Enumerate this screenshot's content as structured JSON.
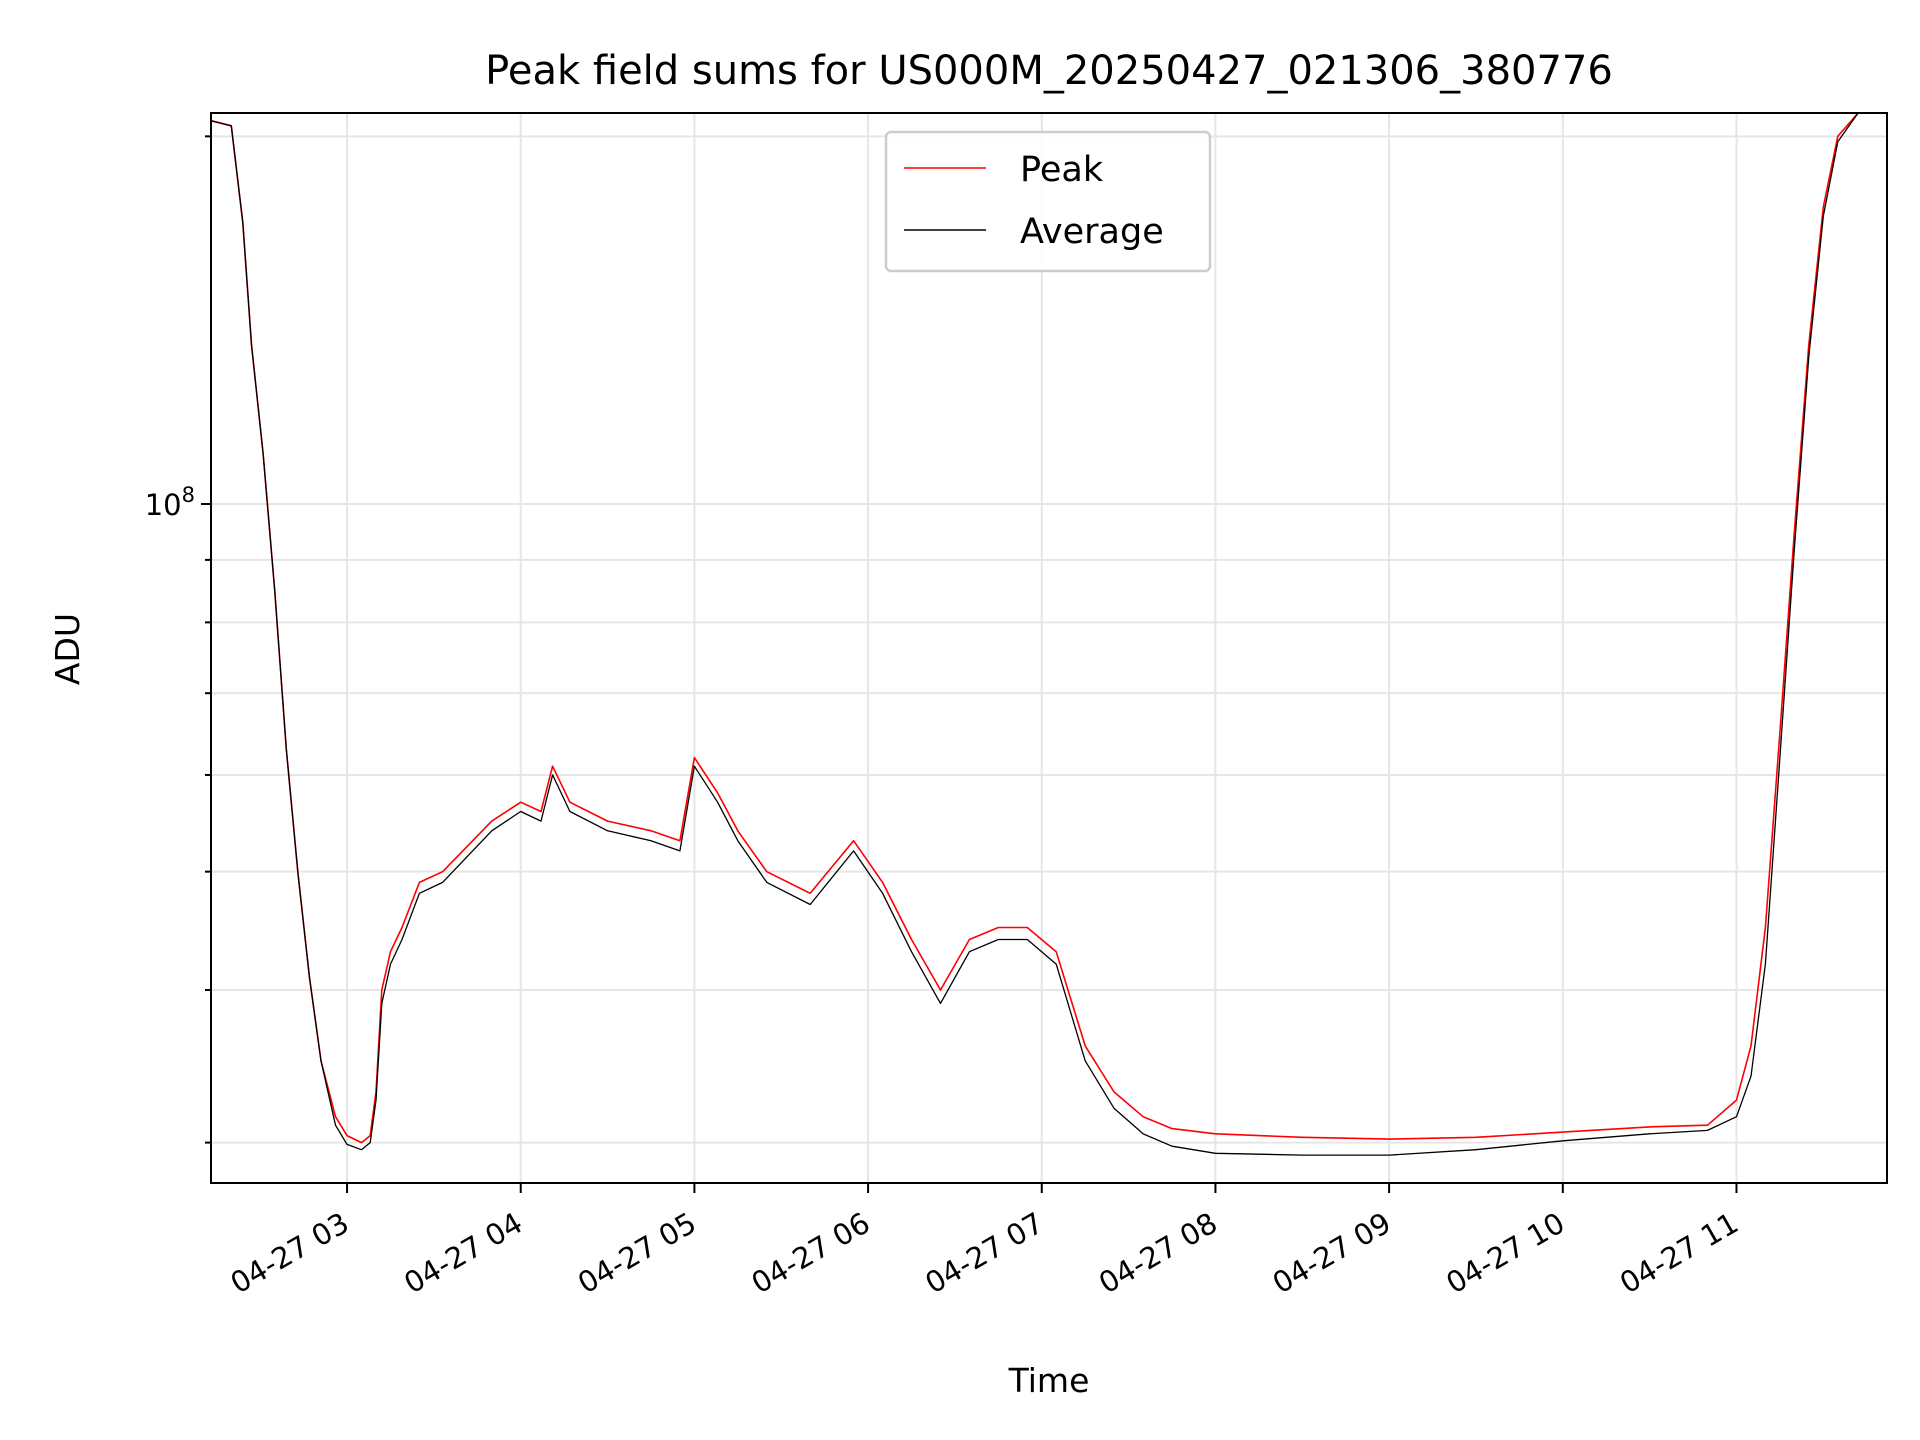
{
  "chart_data": {
    "type": "line",
    "title": "Peak field sums for US000M_20250427_021306_380776",
    "xlabel": "Time",
    "ylabel": "ADU",
    "yscale": "log",
    "grid": true,
    "legend_position": "top-center",
    "xlim": [
      "2025-04-27 02:13",
      "2025-04-27 11:52"
    ],
    "ylim": [
      27800000,
      209000000
    ],
    "x_ticks": [
      {
        "time": "2025-04-27 03:00",
        "label": "04-27 03"
      },
      {
        "time": "2025-04-27 04:00",
        "label": "04-27 04"
      },
      {
        "time": "2025-04-27 05:00",
        "label": "04-27 05"
      },
      {
        "time": "2025-04-27 06:00",
        "label": "04-27 06"
      },
      {
        "time": "2025-04-27 07:00",
        "label": "04-27 07"
      },
      {
        "time": "2025-04-27 08:00",
        "label": "04-27 08"
      },
      {
        "time": "2025-04-27 09:00",
        "label": "04-27 09"
      },
      {
        "time": "2025-04-27 10:00",
        "label": "04-27 10"
      },
      {
        "time": "2025-04-27 11:00",
        "label": "04-27 11"
      }
    ],
    "y_major_ticks": [
      {
        "value": 100000000,
        "label_base": "10",
        "label_exp": "8"
      }
    ],
    "y_minor_ticks": [
      30000000,
      40000000,
      50000000,
      60000000,
      70000000,
      80000000,
      90000000,
      200000000
    ],
    "series": [
      {
        "name": "Peak",
        "color": "#ff0000",
        "points": [
          [
            "2025-04-27 02:13",
            206000000
          ],
          [
            "2025-04-27 02:20",
            204000000
          ],
          [
            "2025-04-27 02:24",
            170000000
          ],
          [
            "2025-04-27 02:27",
            135000000
          ],
          [
            "2025-04-27 02:31",
            110000000
          ],
          [
            "2025-04-27 02:35",
            85000000
          ],
          [
            "2025-04-27 02:39",
            63000000
          ],
          [
            "2025-04-27 02:43",
            50000000
          ],
          [
            "2025-04-27 02:47",
            41000000
          ],
          [
            "2025-04-27 02:51",
            35000000
          ],
          [
            "2025-04-27 02:56",
            31500000
          ],
          [
            "2025-04-27 03:00",
            30400000
          ],
          [
            "2025-04-27 03:05",
            30000000
          ],
          [
            "2025-04-27 03:08",
            30400000
          ],
          [
            "2025-04-27 03:10",
            33000000
          ],
          [
            "2025-04-27 03:12",
            40000000
          ],
          [
            "2025-04-27 03:15",
            43000000
          ],
          [
            "2025-04-27 03:19",
            45000000
          ],
          [
            "2025-04-27 03:25",
            49000000
          ],
          [
            "2025-04-27 03:33",
            50000000
          ],
          [
            "2025-04-27 03:40",
            52000000
          ],
          [
            "2025-04-27 03:50",
            55000000
          ],
          [
            "2025-04-27 04:00",
            57000000
          ],
          [
            "2025-04-27 04:07",
            56000000
          ],
          [
            "2025-04-27 04:11",
            61000000
          ],
          [
            "2025-04-27 04:17",
            57000000
          ],
          [
            "2025-04-27 04:30",
            55000000
          ],
          [
            "2025-04-27 04:45",
            54000000
          ],
          [
            "2025-04-27 04:55",
            53000000
          ],
          [
            "2025-04-27 05:00",
            62000000
          ],
          [
            "2025-04-27 05:08",
            58000000
          ],
          [
            "2025-04-27 05:15",
            54000000
          ],
          [
            "2025-04-27 05:25",
            50000000
          ],
          [
            "2025-04-27 05:40",
            48000000
          ],
          [
            "2025-04-27 05:55",
            53000000
          ],
          [
            "2025-04-27 06:05",
            49000000
          ],
          [
            "2025-04-27 06:15",
            44000000
          ],
          [
            "2025-04-27 06:25",
            40000000
          ],
          [
            "2025-04-27 06:35",
            44000000
          ],
          [
            "2025-04-27 06:45",
            45000000
          ],
          [
            "2025-04-27 06:55",
            45000000
          ],
          [
            "2025-04-27 07:05",
            43000000
          ],
          [
            "2025-04-27 07:15",
            36000000
          ],
          [
            "2025-04-27 07:25",
            33000000
          ],
          [
            "2025-04-27 07:35",
            31500000
          ],
          [
            "2025-04-27 07:45",
            30800000
          ],
          [
            "2025-04-27 08:00",
            30500000
          ],
          [
            "2025-04-27 08:30",
            30300000
          ],
          [
            "2025-04-27 09:00",
            30200000
          ],
          [
            "2025-04-27 09:30",
            30300000
          ],
          [
            "2025-04-27 10:00",
            30600000
          ],
          [
            "2025-04-27 10:30",
            30900000
          ],
          [
            "2025-04-27 10:50",
            31000000
          ],
          [
            "2025-04-27 11:00",
            32500000
          ],
          [
            "2025-04-27 11:05",
            36000000
          ],
          [
            "2025-04-27 11:10",
            45000000
          ],
          [
            "2025-04-27 11:15",
            65000000
          ],
          [
            "2025-04-27 11:20",
            95000000
          ],
          [
            "2025-04-27 11:25",
            135000000
          ],
          [
            "2025-04-27 11:30",
            175000000
          ],
          [
            "2025-04-27 11:35",
            200000000
          ],
          [
            "2025-04-27 11:42",
            209000000
          ]
        ]
      },
      {
        "name": "Average",
        "color": "#000000",
        "points": [
          [
            "2025-04-27 02:13",
            206000000
          ],
          [
            "2025-04-27 02:20",
            204000000
          ],
          [
            "2025-04-27 02:24",
            170000000
          ],
          [
            "2025-04-27 02:27",
            135000000
          ],
          [
            "2025-04-27 02:31",
            110000000
          ],
          [
            "2025-04-27 02:35",
            85000000
          ],
          [
            "2025-04-27 02:39",
            63000000
          ],
          [
            "2025-04-27 02:43",
            50000000
          ],
          [
            "2025-04-27 02:47",
            41000000
          ],
          [
            "2025-04-27 02:51",
            35000000
          ],
          [
            "2025-04-27 02:56",
            31000000
          ],
          [
            "2025-04-27 03:00",
            29900000
          ],
          [
            "2025-04-27 03:05",
            29600000
          ],
          [
            "2025-04-27 03:08",
            30000000
          ],
          [
            "2025-04-27 03:10",
            32500000
          ],
          [
            "2025-04-27 03:12",
            39000000
          ],
          [
            "2025-04-27 03:15",
            42000000
          ],
          [
            "2025-04-27 03:19",
            44000000
          ],
          [
            "2025-04-27 03:25",
            48000000
          ],
          [
            "2025-04-27 03:33",
            49000000
          ],
          [
            "2025-04-27 03:40",
            51000000
          ],
          [
            "2025-04-27 03:50",
            54000000
          ],
          [
            "2025-04-27 04:00",
            56000000
          ],
          [
            "2025-04-27 04:07",
            55000000
          ],
          [
            "2025-04-27 04:11",
            60000000
          ],
          [
            "2025-04-27 04:17",
            56000000
          ],
          [
            "2025-04-27 04:30",
            54000000
          ],
          [
            "2025-04-27 04:45",
            53000000
          ],
          [
            "2025-04-27 04:55",
            52000000
          ],
          [
            "2025-04-27 05:00",
            61000000
          ],
          [
            "2025-04-27 05:08",
            57000000
          ],
          [
            "2025-04-27 05:15",
            53000000
          ],
          [
            "2025-04-27 05:25",
            49000000
          ],
          [
            "2025-04-27 05:40",
            47000000
          ],
          [
            "2025-04-27 05:55",
            52000000
          ],
          [
            "2025-04-27 06:05",
            48000000
          ],
          [
            "2025-04-27 06:15",
            43000000
          ],
          [
            "2025-04-27 06:25",
            39000000
          ],
          [
            "2025-04-27 06:35",
            43000000
          ],
          [
            "2025-04-27 06:45",
            44000000
          ],
          [
            "2025-04-27 06:55",
            44000000
          ],
          [
            "2025-04-27 07:05",
            42000000
          ],
          [
            "2025-04-27 07:15",
            35000000
          ],
          [
            "2025-04-27 07:25",
            32000000
          ],
          [
            "2025-04-27 07:35",
            30500000
          ],
          [
            "2025-04-27 07:45",
            29800000
          ],
          [
            "2025-04-27 08:00",
            29400000
          ],
          [
            "2025-04-27 08:30",
            29300000
          ],
          [
            "2025-04-27 09:00",
            29300000
          ],
          [
            "2025-04-27 09:30",
            29600000
          ],
          [
            "2025-04-27 10:00",
            30100000
          ],
          [
            "2025-04-27 10:30",
            30500000
          ],
          [
            "2025-04-27 10:50",
            30700000
          ],
          [
            "2025-04-27 11:00",
            31500000
          ],
          [
            "2025-04-27 11:05",
            34000000
          ],
          [
            "2025-04-27 11:10",
            42000000
          ],
          [
            "2025-04-27 11:15",
            62000000
          ],
          [
            "2025-04-27 11:20",
            92000000
          ],
          [
            "2025-04-27 11:25",
            132000000
          ],
          [
            "2025-04-27 11:30",
            172000000
          ],
          [
            "2025-04-27 11:35",
            198000000
          ],
          [
            "2025-04-27 11:42",
            209000000
          ]
        ]
      }
    ]
  }
}
